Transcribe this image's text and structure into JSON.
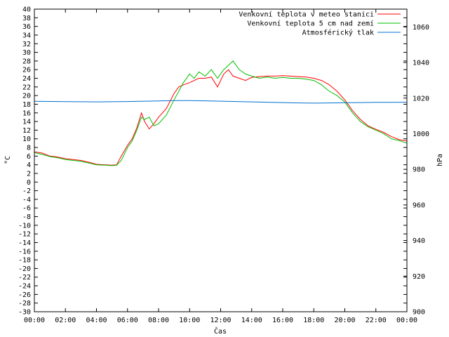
{
  "chart_data": {
    "type": "line",
    "xlabel": "Čas",
    "ylabel_left": "°C",
    "ylabel_right": "hPa",
    "x_ticks": [
      "00:00",
      "02:00",
      "04:00",
      "06:00",
      "08:00",
      "10:00",
      "12:00",
      "14:00",
      "16:00",
      "18:00",
      "20:00",
      "22:00",
      "00:00"
    ],
    "x_range_hours": [
      0,
      24
    ],
    "ylim_left": [
      -30,
      40
    ],
    "y_ticks_left_step": 2,
    "ylim_right": [
      900,
      1070
    ],
    "y_ticks_right": [
      900,
      920,
      940,
      960,
      980,
      1000,
      1020,
      1040,
      1060
    ],
    "legend_position": "top-right",
    "grid": false,
    "series": [
      {
        "name": "Venkovní teplota v meteo stanici",
        "color": "#ff0000",
        "axis": "left",
        "x": [
          0,
          0.5,
          1,
          1.5,
          2,
          2.5,
          3,
          3.5,
          4,
          4.5,
          5,
          5.3,
          5.6,
          6,
          6.3,
          6.6,
          6.9,
          7.1,
          7.4,
          7.7,
          8,
          8.5,
          9,
          9.3,
          9.6,
          10,
          10.3,
          10.6,
          11,
          11.4,
          11.8,
          12.2,
          12.5,
          12.8,
          13.2,
          13.6,
          14,
          14.5,
          15,
          15.5,
          16,
          16.5,
          17,
          17.5,
          18,
          18.5,
          19,
          19.5,
          20,
          20.5,
          21,
          21.5,
          22,
          22.5,
          23,
          23.5,
          24
        ],
        "y": [
          7,
          6.7,
          6,
          5.8,
          5.4,
          5.2,
          5,
          4.6,
          4.1,
          4,
          3.9,
          4,
          6,
          8.5,
          10,
          12.5,
          16,
          14,
          12.3,
          13.5,
          15,
          17,
          20.5,
          22,
          22.5,
          23,
          23.5,
          24,
          24,
          24.3,
          22,
          25,
          26,
          24.5,
          24,
          23.5,
          24.2,
          24.4,
          24.5,
          24.5,
          24.6,
          24.5,
          24.4,
          24.3,
          24,
          23.5,
          22.5,
          21,
          19,
          16.5,
          14.5,
          13,
          12.2,
          11.5,
          10.5,
          9.8,
          9.5
        ]
      },
      {
        "name": "Venkovní teplota 5 cm nad zemí",
        "color": "#00c000",
        "axis": "left",
        "x": [
          0,
          0.5,
          1,
          1.5,
          2,
          2.5,
          3,
          3.5,
          4,
          4.5,
          5,
          5.3,
          5.6,
          6,
          6.3,
          6.6,
          6.9,
          7.1,
          7.4,
          7.7,
          8,
          8.5,
          9,
          9.3,
          9.6,
          10,
          10.3,
          10.6,
          11,
          11.4,
          11.8,
          12.2,
          12.5,
          12.8,
          13.2,
          13.6,
          14,
          14.5,
          15,
          15.5,
          16,
          16.5,
          17,
          17.5,
          18,
          18.5,
          19,
          19.5,
          20,
          20.5,
          21,
          21.5,
          22,
          22.5,
          23,
          23.5,
          24
        ],
        "y": [
          6.8,
          6.4,
          5.9,
          5.6,
          5.2,
          5,
          4.8,
          4.4,
          4,
          3.9,
          3.8,
          3.9,
          5,
          8,
          9.5,
          12,
          15,
          14.5,
          15,
          13,
          13.5,
          15.5,
          19,
          21,
          23,
          25,
          24,
          25.5,
          24.5,
          26,
          24,
          26,
          27,
          28,
          26,
          25,
          24.5,
          24,
          24.3,
          24,
          24.2,
          24,
          24,
          23.8,
          23.5,
          22.5,
          21,
          20,
          18.5,
          16,
          14,
          12.8,
          12,
          11.2,
          10,
          9.6,
          9
        ]
      },
      {
        "name": "Atmosférický tlak",
        "color": "#0070d0",
        "axis": "right",
        "x": [
          0,
          2,
          4,
          6,
          8,
          9,
          10,
          11,
          12,
          13,
          14,
          15,
          16,
          17,
          18,
          19,
          20,
          21,
          22,
          23,
          24
        ],
        "y": [
          1018.2,
          1018,
          1017.9,
          1018.1,
          1018.4,
          1018.6,
          1018.6,
          1018.5,
          1018.3,
          1018.1,
          1017.9,
          1017.7,
          1017.5,
          1017.3,
          1017.2,
          1017.3,
          1017.4,
          1017.5,
          1017.6,
          1017.6,
          1017.7
        ]
      }
    ]
  }
}
